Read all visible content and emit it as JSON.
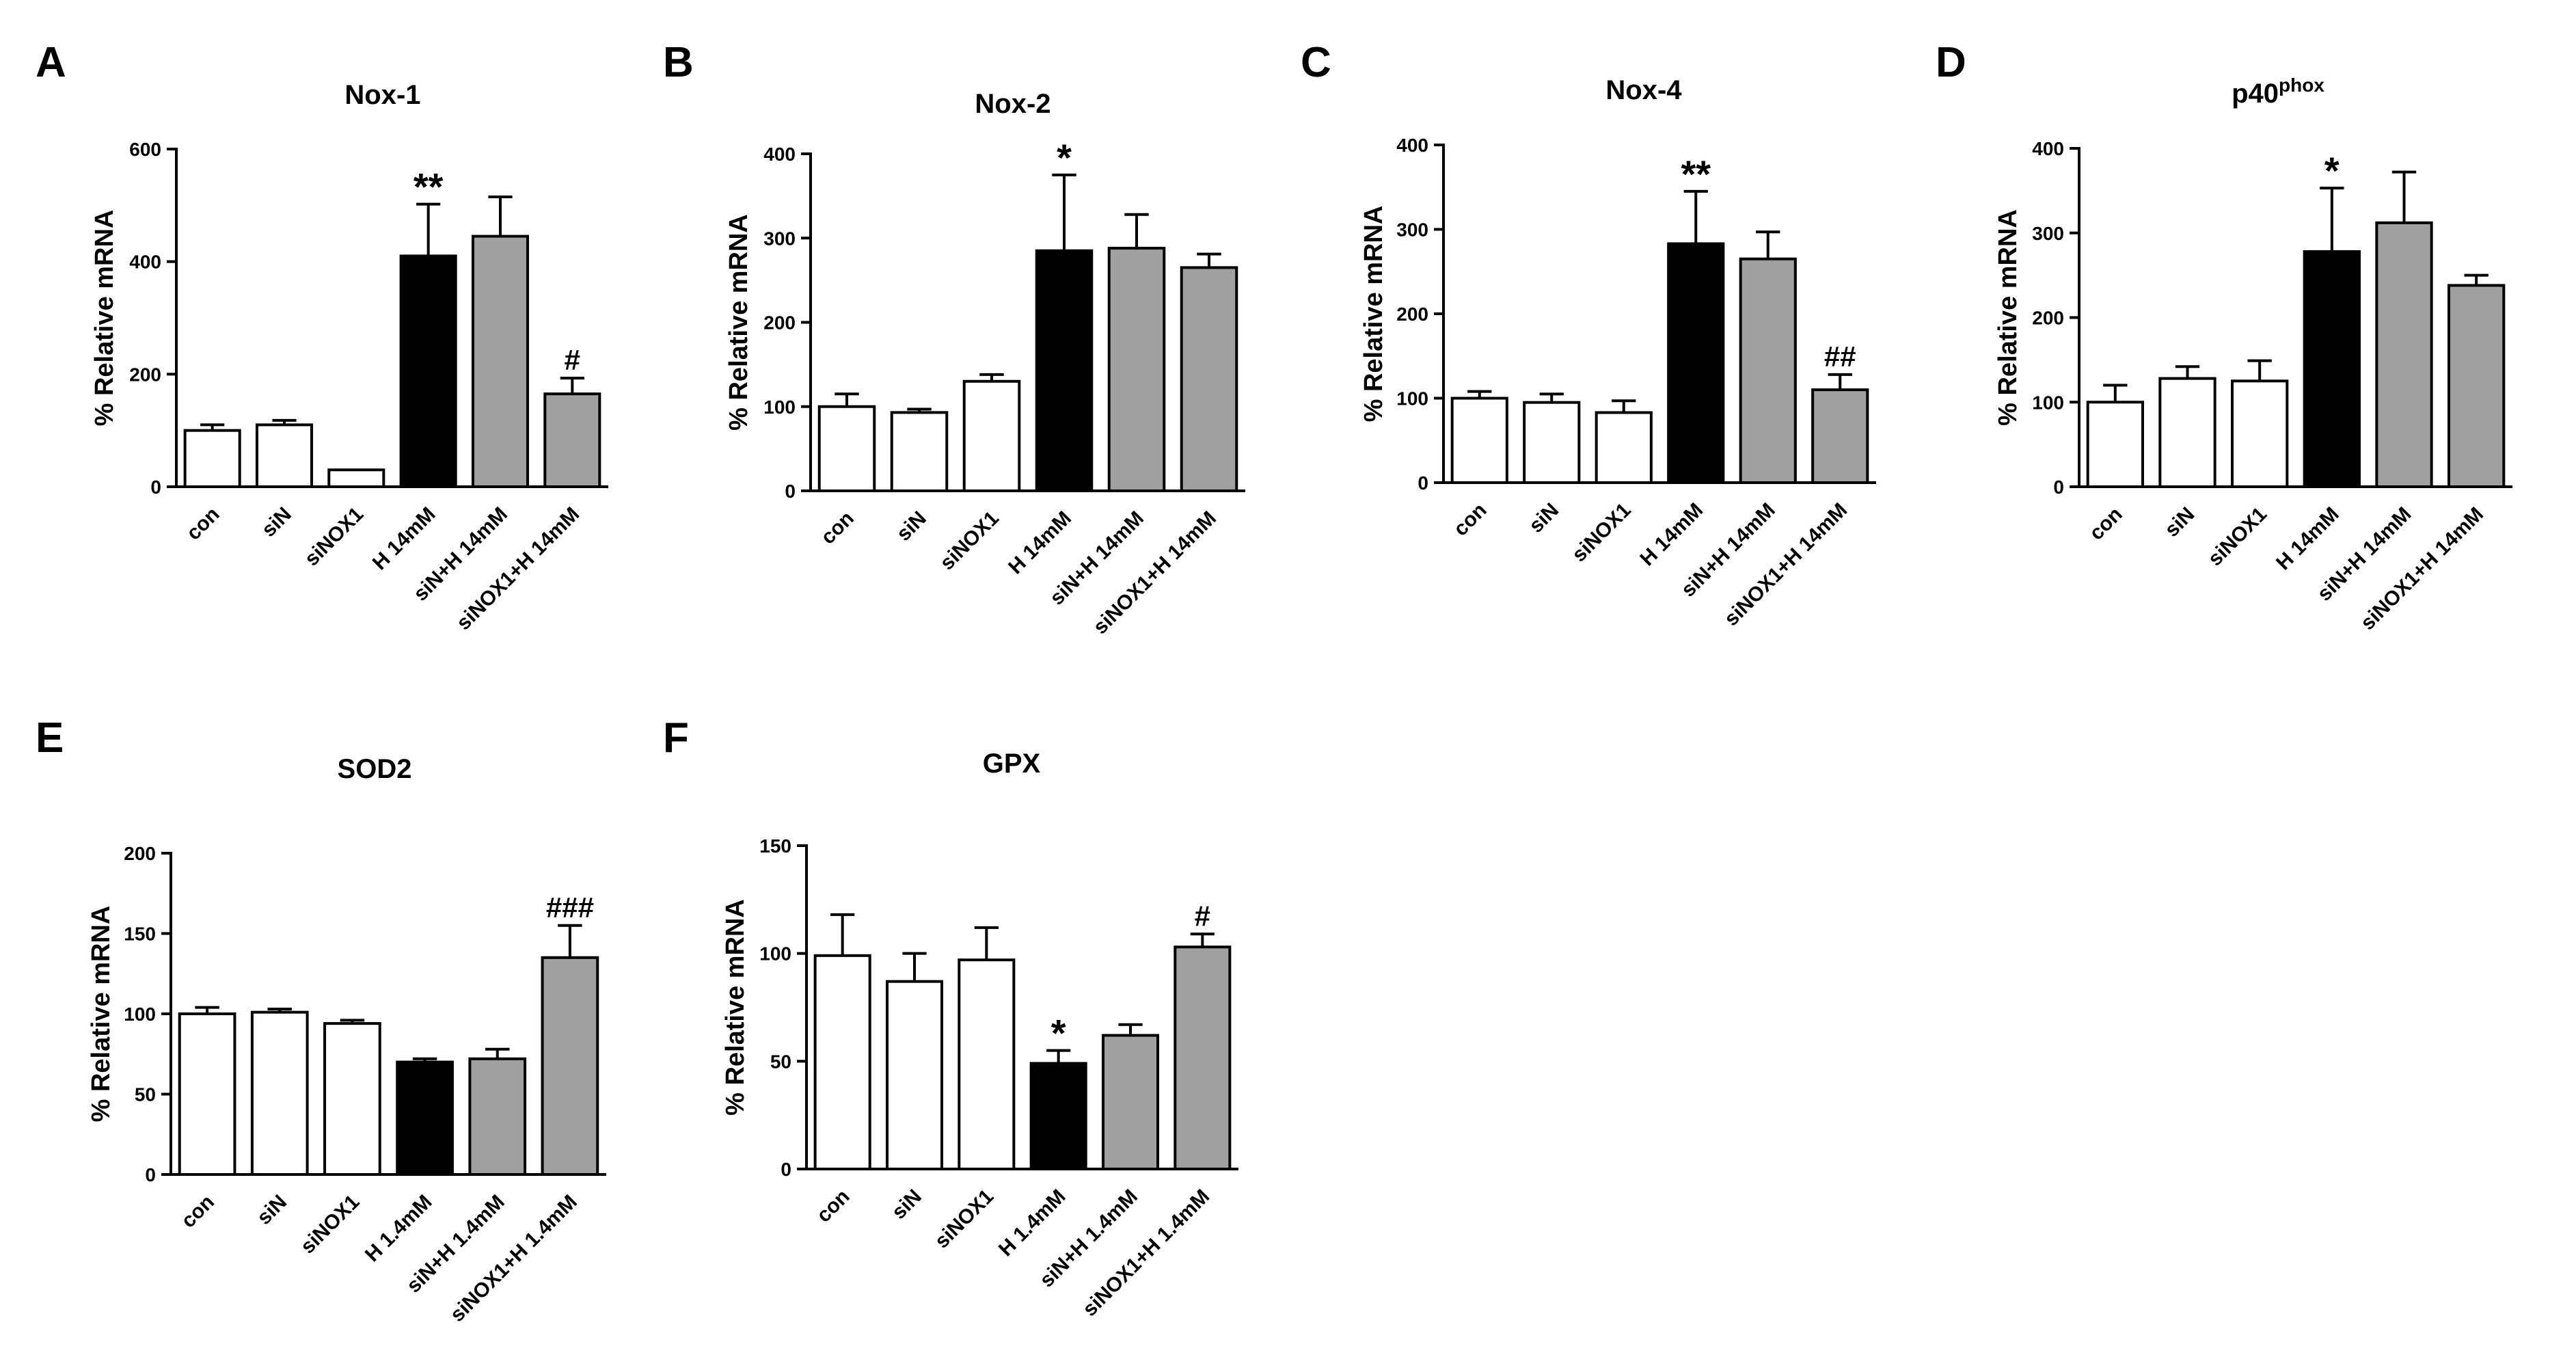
{
  "chart_data": [
    {
      "type": "bar",
      "id": "nox1",
      "panel": "A",
      "title": "Nox-1",
      "title_sup": "",
      "ylabel": "% Relative mRNA",
      "xlabel": "",
      "ylim": [
        0,
        600
      ],
      "yticks": [
        0,
        200,
        400,
        600
      ],
      "categories": [
        "con",
        "siN",
        "siNOX1",
        "H 14mM",
        "siN+H 14mM",
        "siNOX1+H 14mM"
      ],
      "fills": [
        "white",
        "white",
        "white",
        "black",
        "gray",
        "gray"
      ],
      "values": [
        100,
        110,
        30,
        410,
        445,
        165
      ],
      "errors": [
        10,
        8,
        0,
        92,
        70,
        28
      ],
      "annotations": [
        "",
        "",
        "",
        "**",
        "",
        "#"
      ]
    },
    {
      "type": "bar",
      "id": "nox2",
      "panel": "B",
      "title": "Nox-2",
      "title_sup": "",
      "ylabel": "% Relative mRNA",
      "xlabel": "",
      "ylim": [
        0,
        400
      ],
      "yticks": [
        0,
        100,
        200,
        300,
        400
      ],
      "categories": [
        "con",
        "siN",
        "siNOX1",
        "H 14mM",
        "siN+H 14mM",
        "siNOX1+H 14mM"
      ],
      "fills": [
        "white",
        "white",
        "white",
        "black",
        "gray",
        "gray"
      ],
      "values": [
        100,
        93,
        130,
        285,
        288,
        265
      ],
      "errors": [
        15,
        4,
        8,
        90,
        40,
        16
      ],
      "annotations": [
        "",
        "",
        "",
        "*",
        "",
        ""
      ]
    },
    {
      "type": "bar",
      "id": "nox4",
      "panel": "C",
      "title": "Nox-4",
      "title_sup": "",
      "ylabel": "% Relative mRNA",
      "xlabel": "",
      "ylim": [
        0,
        400
      ],
      "yticks": [
        0,
        100,
        200,
        300,
        400
      ],
      "categories": [
        "con",
        "siN",
        "siNOX1",
        "H 14mM",
        "siN+H 14mM",
        "siNOX1+H 14mM"
      ],
      "fills": [
        "white",
        "white",
        "white",
        "black",
        "gray",
        "gray"
      ],
      "values": [
        100,
        95,
        83,
        283,
        265,
        110
      ],
      "errors": [
        8,
        10,
        14,
        62,
        32,
        18
      ],
      "annotations": [
        "",
        "",
        "",
        "**",
        "",
        "##"
      ]
    },
    {
      "type": "bar",
      "id": "p40phox",
      "panel": "D",
      "title": "p40",
      "title_sup": "phox",
      "ylabel": "% Relative mRNA",
      "xlabel": "",
      "ylim": [
        0,
        400
      ],
      "yticks": [
        0,
        100,
        200,
        300,
        400
      ],
      "categories": [
        "con",
        "siN",
        "siNOX1",
        "H 14mM",
        "siN+H 14mM",
        "siNOX1+H 14mM"
      ],
      "fills": [
        "white",
        "white",
        "white",
        "black",
        "gray",
        "gray"
      ],
      "values": [
        100,
        128,
        125,
        278,
        312,
        238
      ],
      "errors": [
        20,
        14,
        24,
        75,
        60,
        12
      ],
      "annotations": [
        "",
        "",
        "",
        "*",
        "",
        ""
      ]
    },
    {
      "type": "bar",
      "id": "sod2",
      "panel": "E",
      "title": "SOD2",
      "title_sup": "",
      "ylabel": "% Relative mRNA",
      "xlabel": "",
      "ylim": [
        0,
        200
      ],
      "yticks": [
        0,
        50,
        100,
        150,
        200
      ],
      "categories": [
        "con",
        "siN",
        "siNOX1",
        "H 1.4mM",
        "siN+H 1.4mM",
        "siNOX1+H 1.4mM"
      ],
      "fills": [
        "white",
        "white",
        "white",
        "black",
        "gray",
        "gray"
      ],
      "values": [
        100,
        101,
        94,
        70,
        72,
        135
      ],
      "errors": [
        4,
        2,
        2,
        2,
        6,
        20
      ],
      "annotations": [
        "",
        "",
        "",
        "",
        "",
        "###"
      ]
    },
    {
      "type": "bar",
      "id": "gpx",
      "panel": "F",
      "title": "GPX",
      "title_sup": "",
      "ylabel": "% Relative mRNA",
      "xlabel": "",
      "ylim": [
        0,
        150
      ],
      "yticks": [
        0,
        50,
        100,
        150
      ],
      "categories": [
        "con",
        "siN",
        "siNOX1",
        "H 1.4mM",
        "siN+H 1.4mM",
        "siNOX1+H 1.4mM"
      ],
      "fills": [
        "white",
        "white",
        "white",
        "black",
        "gray",
        "gray"
      ],
      "values": [
        99,
        87,
        97,
        49,
        62,
        103
      ],
      "errors": [
        19,
        13,
        15,
        6,
        5,
        6
      ],
      "annotations": [
        "",
        "",
        "",
        "*",
        "",
        "#"
      ]
    }
  ],
  "colors": {
    "white": "#ffffff",
    "black": "#000000",
    "gray": "#a0a0a0",
    "stroke": "#000000"
  }
}
